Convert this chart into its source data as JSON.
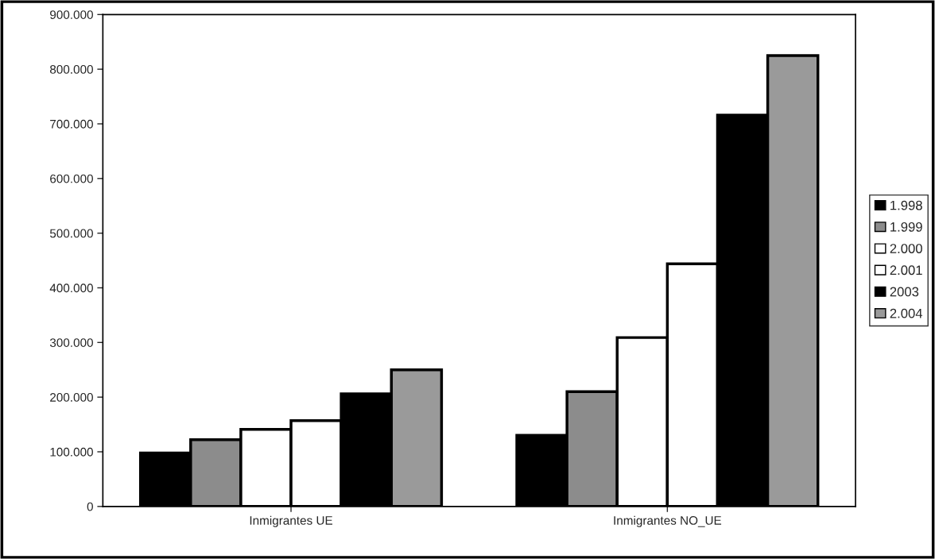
{
  "chart_data": {
    "type": "bar",
    "categories": [
      "Inmigrantes UE",
      "Inmigrantes NO_UE"
    ],
    "series": [
      {
        "name": "1.998",
        "color": "#000000",
        "values": [
          98000,
          130000
        ]
      },
      {
        "name": "1.999",
        "color": "#8c8c8c",
        "values": [
          122000,
          210000
        ]
      },
      {
        "name": "2.000",
        "color": "#ffffff",
        "values": [
          141000,
          309000
        ]
      },
      {
        "name": "2.001",
        "color": "#ffffff",
        "values": [
          157000,
          444000
        ]
      },
      {
        "name": "2003",
        "color": "#000000",
        "values": [
          206000,
          716000
        ]
      },
      {
        "name": "2.004",
        "color": "#9a9a9a",
        "values": [
          250000,
          825000
        ]
      }
    ],
    "ylim": [
      0,
      900000
    ],
    "yticks": [
      0,
      {
        "value": 100000,
        "label": "100.000"
      },
      {
        "value": 200000,
        "label": "200.000"
      },
      {
        "value": 300000,
        "label": "300.000"
      },
      {
        "value": 400000,
        "label": "400.000"
      },
      {
        "value": 500000,
        "label": "500.000"
      },
      {
        "value": 600000,
        "label": "600.000"
      },
      {
        "value": 700000,
        "label": "700.000"
      },
      {
        "value": 800000,
        "label": "800.000"
      },
      {
        "value": 900000,
        "label": "900.000"
      }
    ],
    "grid": false,
    "legend": "right"
  }
}
